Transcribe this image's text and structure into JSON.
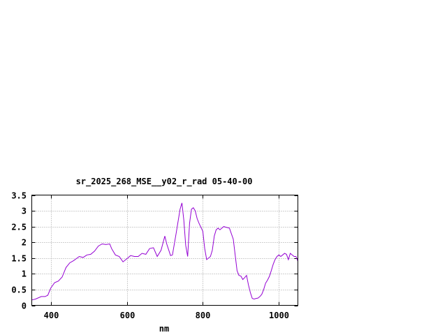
{
  "chart_data": {
    "type": "line",
    "title": "sr_2025_268_MSE__y02_r_rad 05-40-00",
    "xlabel": "nm",
    "ylabel": "",
    "xlim": [
      350,
      1050
    ],
    "ylim": [
      0,
      3.5
    ],
    "xticks": [
      400,
      600,
      800,
      1000
    ],
    "xtick_labels": [
      "400",
      "600",
      "800",
      "1000"
    ],
    "yticks": [
      0,
      0.5,
      1,
      1.5,
      2,
      2.5,
      3,
      3.5
    ],
    "ytick_labels": [
      "0",
      "0.5",
      "1",
      "1.5",
      "2",
      "2.5",
      "3",
      "3.5"
    ],
    "grid": true,
    "legend": "none",
    "series": [
      {
        "color": "#9400d3",
        "x": [
          350,
          360,
          375,
          385,
          392,
          400,
          410,
          420,
          430,
          440,
          450,
          460,
          475,
          485,
          495,
          505,
          515,
          525,
          535,
          545,
          555,
          560,
          570,
          580,
          590,
          600,
          610,
          620,
          630,
          640,
          650,
          660,
          670,
          680,
          690,
          700,
          705,
          715,
          720,
          730,
          740,
          745,
          750,
          755,
          760,
          765,
          770,
          775,
          780,
          785,
          790,
          800,
          805,
          810,
          820,
          825,
          830,
          835,
          840,
          845,
          850,
          855,
          860,
          870,
          880,
          890,
          895,
          900,
          905,
          910,
          915,
          920,
          925,
          930,
          935,
          940,
          945,
          950,
          955,
          960,
          965,
          970,
          975,
          980,
          985,
          990,
          995,
          1000,
          1005,
          1010,
          1015,
          1020,
          1025,
          1030,
          1035,
          1040,
          1045,
          1050
        ],
        "y": [
          0.17,
          0.2,
          0.28,
          0.28,
          0.32,
          0.55,
          0.72,
          0.77,
          0.9,
          1.2,
          1.35,
          1.42,
          1.55,
          1.52,
          1.6,
          1.62,
          1.72,
          1.88,
          1.95,
          1.93,
          1.95,
          1.8,
          1.6,
          1.55,
          1.38,
          1.48,
          1.58,
          1.55,
          1.55,
          1.65,
          1.62,
          1.8,
          1.83,
          1.55,
          1.75,
          2.2,
          1.95,
          1.58,
          1.6,
          2.3,
          3.05,
          3.25,
          2.7,
          1.9,
          1.55,
          2.6,
          3.05,
          3.1,
          3.0,
          2.75,
          2.6,
          2.35,
          1.8,
          1.45,
          1.55,
          1.75,
          2.2,
          2.4,
          2.45,
          2.4,
          2.45,
          2.5,
          2.48,
          2.45,
          2.1,
          1.1,
          0.95,
          0.93,
          0.82,
          0.88,
          0.95,
          0.65,
          0.4,
          0.22,
          0.2,
          0.22,
          0.23,
          0.28,
          0.35,
          0.5,
          0.7,
          0.8,
          0.92,
          1.1,
          1.3,
          1.45,
          1.55,
          1.6,
          1.55,
          1.6,
          1.65,
          1.62,
          1.45,
          1.65,
          1.6,
          1.55,
          1.55,
          1.4
        ]
      }
    ]
  }
}
